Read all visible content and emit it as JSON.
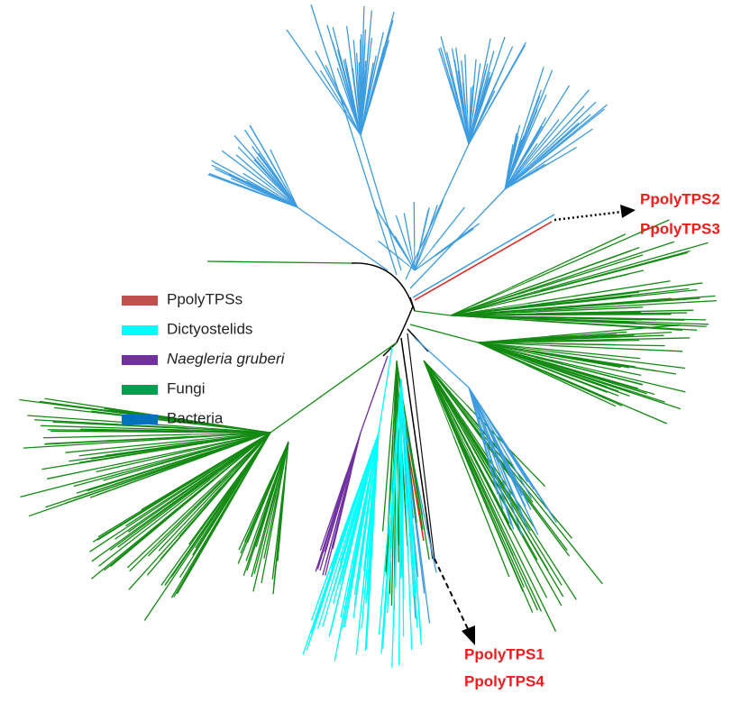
{
  "legend": [
    {
      "label": "PpolyTPSs",
      "color": "#c0504d"
    },
    {
      "label": "Dictyostelids",
      "color": "#00ffff"
    },
    {
      "label": "Naegleria gruberi",
      "color": "#7030a0",
      "italic": true
    },
    {
      "label": "Fungi",
      "color": "#00a050"
    },
    {
      "label": "Bacteria",
      "color": "#0070c0"
    }
  ],
  "annotations": {
    "top": [
      "PpolyTPS2",
      "PpolyTPS3"
    ],
    "bottom": [
      "PpolyTPS1",
      "PpolyTPS4"
    ]
  }
}
